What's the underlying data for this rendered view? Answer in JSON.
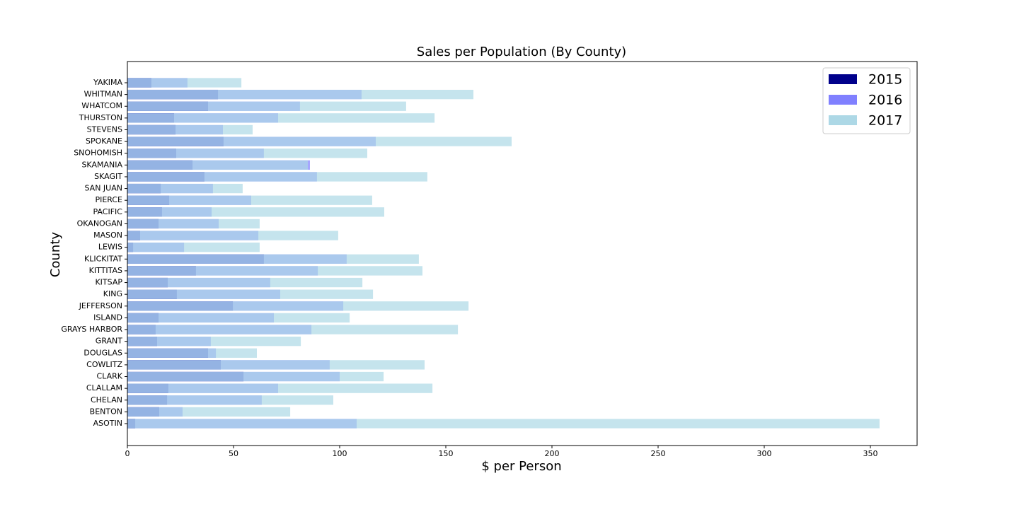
{
  "chart_data": {
    "type": "barh",
    "title": "Sales per Population (By County)",
    "x_label": "$ per Person",
    "y_label": "County",
    "categories": [
      "ASOTIN",
      "BENTON",
      "CHELAN",
      "CLALLAM",
      "CLARK",
      "COWLITZ",
      "DOUGLAS",
      "GRANT",
      "GRAYS HARBOR",
      "ISLAND",
      "JEFFERSON",
      "KING",
      "KITSAP",
      "KITTITAS",
      "KLICKITAT",
      "LEWIS",
      "MASON",
      "OKANOGAN",
      "PACIFIC",
      "PIERCE",
      "SAN JUAN",
      "SKAGIT",
      "SKAMANIA",
      "SNOHOMISH",
      "SPOKANE",
      "STEVENS",
      "THURSTON",
      "WHATCOM",
      "WHITMAN",
      "YAKIMA"
    ],
    "series": [
      {
        "name": "2015",
        "color": "#00008b",
        "values": [
          3.7,
          15,
          18.7,
          19.3,
          54.7,
          44,
          38,
          14,
          13.3,
          14.7,
          49.7,
          23.3,
          19,
          32.3,
          64.3,
          2.7,
          6,
          14.7,
          16.3,
          19.7,
          15.7,
          36.3,
          30.7,
          23,
          45.3,
          22.7,
          22,
          38,
          42.7,
          11.3
        ]
      },
      {
        "name": "2016",
        "color": "#8080ff",
        "values": [
          108,
          26,
          63.3,
          71,
          100,
          95.3,
          41.7,
          39.3,
          86.7,
          69,
          101.7,
          72,
          67.3,
          89.7,
          103.3,
          26.7,
          61.7,
          43,
          39.7,
          58.3,
          40.3,
          89.3,
          86,
          64.3,
          117,
          45,
          71,
          81.3,
          110.3,
          28.3
        ]
      },
      {
        "name": "2017",
        "color": "#add8e6",
        "values": [
          354.3,
          76.7,
          97,
          143.7,
          120.7,
          140,
          61,
          81.7,
          155.7,
          104.7,
          160.7,
          115.7,
          110.7,
          139,
          137.3,
          62.3,
          99.3,
          62.3,
          121,
          115.3,
          54.3,
          141.3,
          85,
          113,
          181,
          59,
          144.7,
          131.3,
          163,
          53.7
        ]
      }
    ],
    "xlim": [
      0,
      372
    ],
    "xticks": [
      0,
      50,
      100,
      150,
      200,
      250,
      300,
      350
    ],
    "legend": "upper right"
  }
}
